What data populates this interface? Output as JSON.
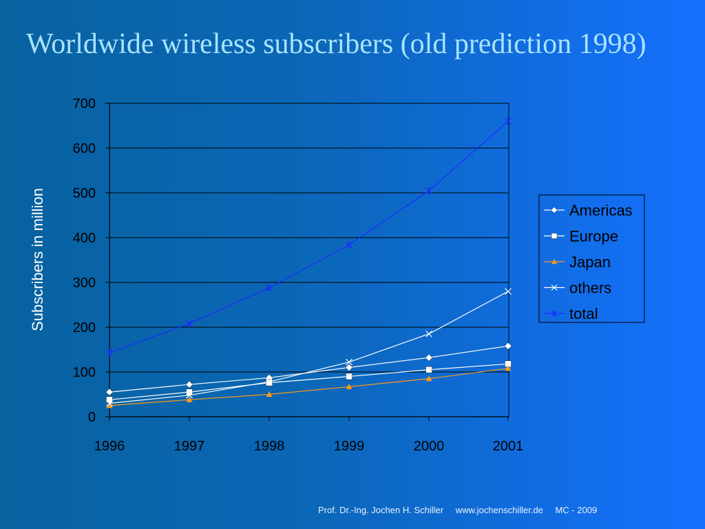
{
  "slide": {
    "title": "Worldwide wireless subscribers (old prediction 1998)",
    "footer": {
      "author": "Prof. Dr.-Ing. Jochen H. Schiller",
      "website": "www.jochenschiller.de",
      "slide_ref": "MC - 2009"
    }
  },
  "chart_data": {
    "type": "line",
    "title": "",
    "xlabel": "",
    "ylabel": "Subscribers in million",
    "x": [
      "1996",
      "1997",
      "1998",
      "1999",
      "2000",
      "2001"
    ],
    "ylim": [
      0,
      700
    ],
    "yticks": [
      0,
      100,
      200,
      300,
      400,
      500,
      600,
      700
    ],
    "grid": true,
    "legend_position": "right",
    "series": [
      {
        "name": "Americas",
        "marker": "diamond",
        "color": "#ffffff",
        "values": [
          55,
          72,
          87,
          110,
          132,
          158
        ]
      },
      {
        "name": "Europe",
        "marker": "square",
        "color": "#ffffff",
        "values": [
          38,
          55,
          76,
          90,
          105,
          118
        ]
      },
      {
        "name": "Japan",
        "marker": "triangle",
        "color": "#ff9a1a",
        "values": [
          25,
          38,
          50,
          67,
          85,
          108
        ]
      },
      {
        "name": "others",
        "marker": "x",
        "color": "#ffffff",
        "values": [
          30,
          48,
          78,
          122,
          185,
          280
        ]
      },
      {
        "name": "total",
        "marker": "star",
        "color": "#1a2cff",
        "values": [
          143,
          208,
          288,
          384,
          505,
          660
        ]
      }
    ]
  }
}
